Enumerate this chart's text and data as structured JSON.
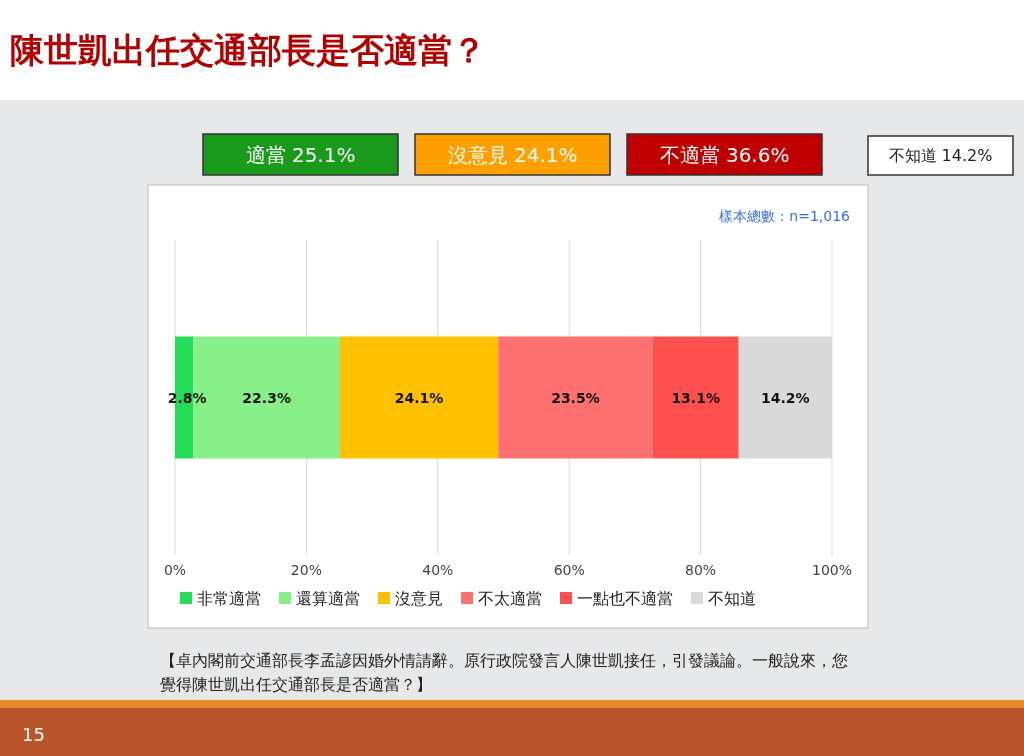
{
  "chart_data": {
    "type": "bar",
    "orientation": "horizontal",
    "stacked": true,
    "title": "陳世凱出任交通部長是否適當？",
    "categories": [
      null
    ],
    "series": [
      {
        "name": "非常適當",
        "color": "#22dd55",
        "values": [
          2.8
        ],
        "value_labels": [
          "2.8%"
        ]
      },
      {
        "name": "還算適當",
        "color": "#88f088",
        "values": [
          22.3
        ],
        "value_labels": [
          "22.3%"
        ]
      },
      {
        "name": "沒意見",
        "color": "#ffc000",
        "values": [
          24.1
        ],
        "value_labels": [
          "24.1%"
        ]
      },
      {
        "name": "不太適當",
        "color": "#ff7070",
        "values": [
          23.5
        ],
        "value_labels": [
          "23.5%"
        ]
      },
      {
        "name": "一點也不適當",
        "color": "#ff5050",
        "values": [
          13.1
        ],
        "value_labels": [
          "13.1%"
        ]
      },
      {
        "name": "不知道",
        "color": "#d9d9d9",
        "values": [
          14.2
        ],
        "value_labels": [
          "14.2%"
        ]
      }
    ],
    "xlim": [
      0,
      100
    ],
    "xticks": [
      {
        "value": 0,
        "label": "0%"
      },
      {
        "value": 20,
        "label": "20%"
      },
      {
        "value": 40,
        "label": "40%"
      },
      {
        "value": 60,
        "label": "60%"
      },
      {
        "value": 80,
        "label": "80%"
      },
      {
        "value": 100,
        "label": "100%"
      }
    ],
    "grid": "x",
    "legend": "bottom",
    "annotations": [
      "適當 25.1%",
      "沒意見 24.1%",
      "不適當 36.6%",
      "不知道 14.2%",
      "樣本總數：n=1,016",
      "【卓內閣前交通部長李孟諺因婚外情請辭。原行政院發言人陳世凱接任，引發議論。一般說來，您覺得陳世凱出任交通部長是否適當？】",
      "15"
    ]
  }
}
